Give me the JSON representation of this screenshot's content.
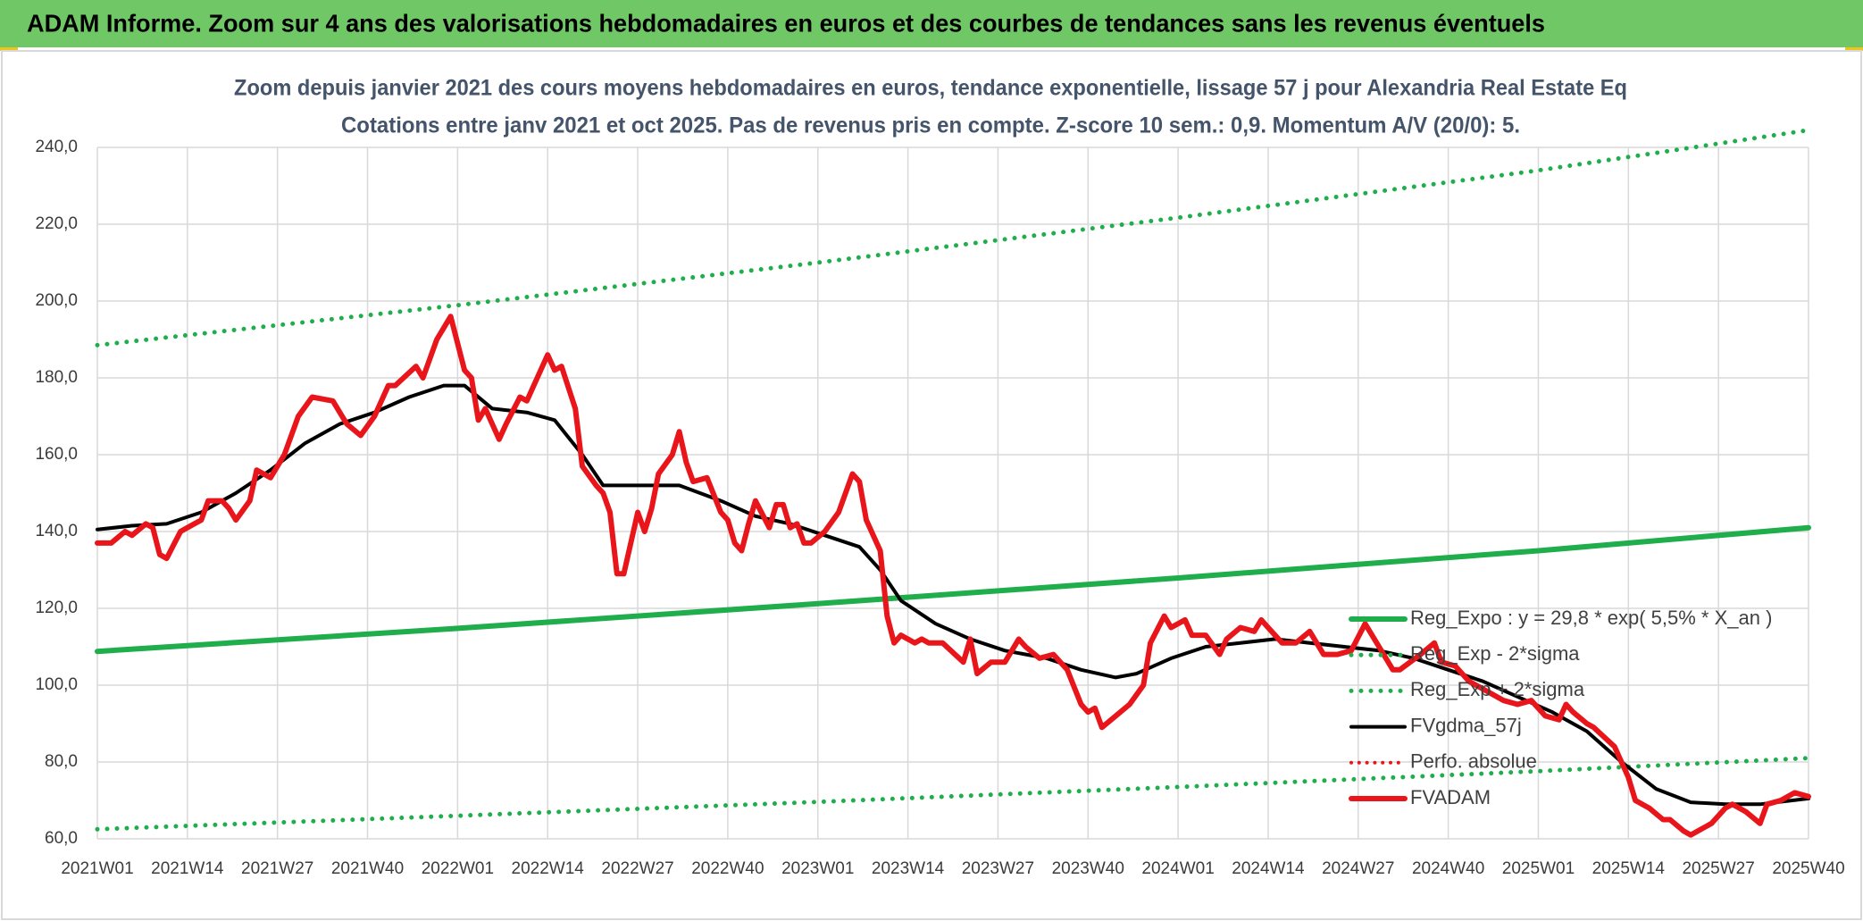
{
  "chart_data": {
    "type": "line",
    "header": "ADAM Informe. Zoom sur 4 ans des valorisations hebdomadaires en euros et des courbes de tendances sans les revenus éventuels",
    "title": "Zoom depuis janvier 2021 des cours moyens hebdomadaires en euros, tendance exponentielle, lissage 57 j pour Alexandria Real Estate Eq",
    "subtitle": "Cotations entre janv 2021 et oct 2025. Pas de revenus pris en compte. Z-score 10 sem.: 0,9. Momentum A/V (20/0): 5.",
    "xlim": [
      0,
      247
    ],
    "xticks": [
      {
        "value": 0,
        "label": "2021W01"
      },
      {
        "value": 13,
        "label": "2021W14"
      },
      {
        "value": 26,
        "label": "2021W27"
      },
      {
        "value": 39,
        "label": "2021W40"
      },
      {
        "value": 52,
        "label": "2022W01"
      },
      {
        "value": 65,
        "label": "2022W14"
      },
      {
        "value": 78,
        "label": "2022W27"
      },
      {
        "value": 91,
        "label": "2022W40"
      },
      {
        "value": 104,
        "label": "2023W01"
      },
      {
        "value": 117,
        "label": "2023W14"
      },
      {
        "value": 130,
        "label": "2023W27"
      },
      {
        "value": 143,
        "label": "2023W40"
      },
      {
        "value": 156,
        "label": "2024W01"
      },
      {
        "value": 169,
        "label": "2024W14"
      },
      {
        "value": 182,
        "label": "2024W27"
      },
      {
        "value": 195,
        "label": "2024W40"
      },
      {
        "value": 208,
        "label": "2025W01"
      },
      {
        "value": 221,
        "label": "2025W14"
      },
      {
        "value": 234,
        "label": "2025W27"
      },
      {
        "value": 247,
        "label": "2025W40"
      }
    ],
    "ylim": [
      60,
      240
    ],
    "yticks": [
      {
        "value": 60,
        "label": "60,0"
      },
      {
        "value": 80,
        "label": "80,0"
      },
      {
        "value": 100,
        "label": "100,0"
      },
      {
        "value": 120,
        "label": "120,0"
      },
      {
        "value": 140,
        "label": "140,0"
      },
      {
        "value": 160,
        "label": "160,0"
      },
      {
        "value": 180,
        "label": "180,0"
      },
      {
        "value": 200,
        "label": "200,0"
      },
      {
        "value": 220,
        "label": "220,0"
      },
      {
        "value": 240,
        "label": "240,0"
      }
    ],
    "grid": true,
    "legend": "right",
    "series": [
      {
        "name": "Reg_Expo : y = 29,8 * exp( 5,5% *  X_an )",
        "color": "#1fae4b",
        "dash": "solid",
        "width": 6,
        "x": [
          0,
          52,
          104,
          156,
          208,
          247
        ],
        "values": [
          108.8,
          114.8,
          121.2,
          127.9,
          135.0,
          141.0
        ]
      },
      {
        "name": "Reg_Exp - 2*sigma",
        "color": "#1fae4b",
        "dash": "dot",
        "width": 5,
        "x": [
          0,
          52,
          104,
          156,
          208,
          247
        ],
        "values": [
          62.5,
          66.0,
          69.6,
          73.5,
          77.6,
          81.0
        ]
      },
      {
        "name": "Reg_Exp + 2*sigma",
        "color": "#1fae4b",
        "dash": "dot",
        "width": 5,
        "x": [
          0,
          52,
          104,
          156,
          208,
          247
        ],
        "values": [
          188.5,
          198.9,
          210.0,
          221.7,
          234.0,
          244.5
        ]
      },
      {
        "name": "FVgdma_57j",
        "color": "#000000",
        "dash": "solid",
        "width": 4,
        "x": [
          0,
          5,
          10,
          15,
          20,
          25,
          30,
          35,
          40,
          45,
          50,
          53,
          57,
          62,
          66,
          70,
          73,
          78,
          84,
          90,
          95,
          100,
          105,
          110,
          113,
          116,
          121,
          126,
          131,
          137,
          142,
          147,
          150,
          155,
          160,
          165,
          170,
          175,
          180,
          185,
          190,
          195,
          200,
          205,
          210,
          215,
          220,
          225,
          230,
          235,
          240,
          247
        ],
        "values": [
          140.5,
          141.5,
          142,
          145,
          150,
          156,
          163,
          168,
          171,
          175,
          178,
          178,
          172,
          171,
          169,
          160,
          152,
          152,
          152,
          148,
          144,
          142,
          139,
          136,
          130,
          122,
          116,
          112,
          109,
          107,
          104,
          102,
          103,
          107,
          110,
          111,
          112,
          111,
          110,
          109,
          107,
          104,
          101,
          97,
          93,
          88,
          80,
          73,
          69.5,
          69,
          69,
          70.5
        ]
      },
      {
        "name": "Perfo. absolue",
        "color": "#e8151b",
        "dash": "dot",
        "width": 4
      },
      {
        "name": "FVADAM",
        "color": "#e8151b",
        "dash": "solid",
        "width": 6,
        "x": [
          0,
          2,
          4,
          5,
          7,
          8,
          9,
          10,
          12,
          14,
          15,
          16,
          18,
          19,
          20,
          22,
          23,
          25,
          27,
          29,
          31,
          34,
          36,
          38,
          40,
          42,
          43,
          46,
          47,
          49,
          51,
          53,
          54,
          55,
          56,
          58,
          59,
          61,
          62,
          65,
          66,
          67,
          69,
          70,
          72,
          73,
          74,
          75,
          76,
          78,
          79,
          80,
          81,
          83,
          84,
          85,
          86,
          88,
          90,
          91,
          92,
          93,
          94,
          95,
          97,
          98,
          99,
          100,
          101,
          102,
          103,
          105,
          107,
          109,
          110,
          111,
          113,
          114,
          115,
          116,
          118,
          119,
          120,
          122,
          125,
          126,
          127,
          129,
          131,
          133,
          134,
          136,
          138,
          140,
          142,
          143,
          144,
          145,
          147,
          149,
          151,
          152,
          154,
          155,
          157,
          158,
          160,
          162,
          163,
          165,
          167,
          168,
          169,
          171,
          173,
          175,
          177,
          179,
          181,
          183,
          185,
          187,
          188,
          191,
          193,
          194,
          196,
          198,
          200,
          203,
          205,
          207,
          209,
          211,
          212,
          213,
          215,
          216,
          219,
          221,
          222,
          224,
          226,
          227,
          229,
          230,
          231,
          233,
          235,
          236,
          238,
          240,
          241,
          243,
          245,
          247
        ],
        "values": [
          137,
          137,
          140,
          139,
          142,
          141,
          134,
          133,
          140,
          142,
          143,
          148,
          148,
          146,
          143,
          148,
          156,
          154,
          160,
          170,
          175,
          174,
          168,
          165,
          170,
          178,
          178,
          183,
          180,
          190,
          196,
          182,
          180,
          169,
          172,
          164,
          168,
          175,
          174,
          186,
          182,
          183,
          172,
          157,
          152,
          150,
          145,
          129,
          129,
          145,
          140,
          146,
          155,
          160,
          166,
          158,
          153,
          154,
          145,
          143,
          137,
          135,
          142,
          148,
          141,
          147,
          147,
          141,
          142,
          137,
          137,
          140,
          145,
          155,
          153,
          143,
          135,
          118,
          111,
          113,
          111,
          112,
          111,
          111,
          106,
          112,
          103,
          106,
          106,
          112,
          110,
          107,
          108,
          104,
          95,
          93,
          94,
          89,
          92,
          95,
          100,
          111,
          118,
          115,
          117,
          113,
          113,
          108,
          112,
          115,
          114,
          117,
          115,
          111,
          111,
          114,
          108,
          108,
          109,
          116,
          110,
          104,
          104,
          108,
          111,
          106,
          105,
          101,
          99,
          96,
          95,
          96,
          92,
          91,
          95,
          93,
          90,
          89,
          84,
          76,
          70,
          68,
          65,
          65,
          62,
          61,
          62,
          64,
          68,
          69,
          67,
          64,
          69,
          70,
          72,
          71
        ]
      }
    ]
  }
}
